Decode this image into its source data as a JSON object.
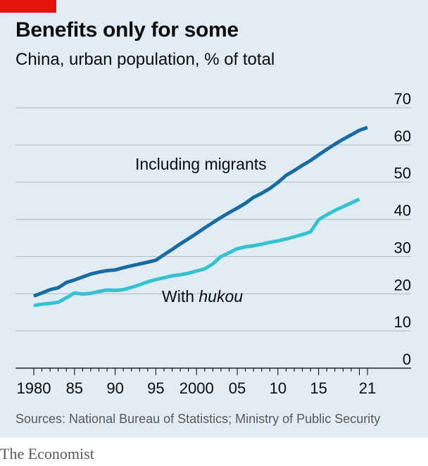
{
  "header": {
    "title": "Benefits only for some",
    "subtitle": "China, urban population, % of total"
  },
  "footer": {
    "source": "Sources: National Bureau of Statistics; Ministry of Public Security",
    "brand": "The Economist"
  },
  "colors": {
    "background": "#e1ecf5",
    "accent_red": "#e3120b",
    "series_migrants": "#1a6ca0",
    "series_hukou": "#36c2d0",
    "grid": "#a8b8c5",
    "axis": "#000000"
  },
  "chart_data": {
    "type": "line",
    "title": "Benefits only for some",
    "subtitle": "China, urban population, % of total",
    "xlim": [
      1980,
      2021
    ],
    "ylim": [
      0,
      70
    ],
    "x_tick_labels": [
      {
        "x": 1980,
        "label": "1980"
      },
      {
        "x": 1985,
        "label": "85"
      },
      {
        "x": 1990,
        "label": "90"
      },
      {
        "x": 1995,
        "label": "95"
      },
      {
        "x": 2000,
        "label": "2000"
      },
      {
        "x": 2005,
        "label": "05"
      },
      {
        "x": 2010,
        "label": "10"
      },
      {
        "x": 2015,
        "label": "15"
      },
      {
        "x": 2021,
        "label": "21"
      }
    ],
    "y_ticks": [
      0,
      10,
      20,
      30,
      40,
      50,
      60,
      70
    ],
    "y_axis_side": "right",
    "grid": true,
    "series": [
      {
        "name": "Including migrants",
        "color": "#1a6ca0",
        "x": [
          1980,
          1981,
          1982,
          1983,
          1984,
          1985,
          1986,
          1987,
          1988,
          1989,
          1990,
          1991,
          1992,
          1993,
          1994,
          1995,
          1996,
          1997,
          1998,
          1999,
          2000,
          2001,
          2002,
          2003,
          2004,
          2005,
          2006,
          2007,
          2008,
          2009,
          2010,
          2011,
          2012,
          2013,
          2014,
          2015,
          2016,
          2017,
          2018,
          2019,
          2020,
          2021
        ],
        "values": [
          19.4,
          20.2,
          21.1,
          21.6,
          23.0,
          23.7,
          24.5,
          25.3,
          25.8,
          26.2,
          26.4,
          27.0,
          27.5,
          28.0,
          28.5,
          29.0,
          30.5,
          31.9,
          33.4,
          34.8,
          36.2,
          37.7,
          39.1,
          40.5,
          41.8,
          43.0,
          44.3,
          45.9,
          47.0,
          48.3,
          49.9,
          51.8,
          53.1,
          54.5,
          55.8,
          57.3,
          58.8,
          60.2,
          61.5,
          62.7,
          63.9,
          64.7
        ]
      },
      {
        "name": "With hukou",
        "color": "#36c2d0",
        "x": [
          1980,
          1981,
          1982,
          1983,
          1984,
          1985,
          1986,
          1987,
          1988,
          1989,
          1990,
          1991,
          1992,
          1993,
          1994,
          1995,
          1996,
          1997,
          1998,
          1999,
          2000,
          2001,
          2002,
          2003,
          2004,
          2005,
          2006,
          2007,
          2008,
          2009,
          2010,
          2011,
          2012,
          2013,
          2014,
          2015,
          2016,
          2017,
          2018,
          2019,
          2020
        ],
        "values": [
          16.8,
          17.2,
          17.4,
          17.7,
          18.9,
          20.2,
          19.9,
          20.1,
          20.6,
          21.0,
          20.9,
          21.1,
          21.7,
          22.4,
          23.2,
          23.8,
          24.3,
          24.8,
          25.1,
          25.5,
          26.1,
          26.7,
          28.0,
          30.0,
          31.0,
          32.1,
          32.6,
          32.9,
          33.3,
          33.8,
          34.2,
          34.7,
          35.3,
          35.9,
          36.6,
          39.9,
          41.2,
          42.4,
          43.4,
          44.4,
          45.4
        ]
      }
    ],
    "annotations": [
      {
        "text_main": "Including migrants",
        "text_italic": "",
        "series": "Including migrants"
      },
      {
        "text_main": "With ",
        "text_italic": "hukou",
        "series": "With hukou"
      }
    ]
  }
}
